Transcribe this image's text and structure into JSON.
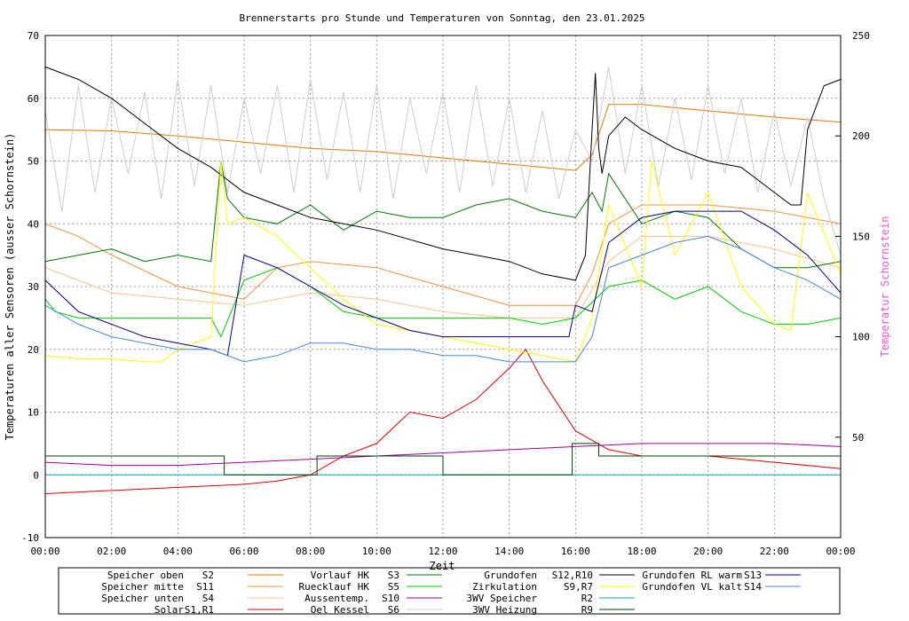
{
  "chart_data": {
    "type": "line",
    "title": "Brennerstarts pro Stunde und Temperaturen von Sonntag, den 23.01.2025",
    "xlabel": "Zeit",
    "ylabel": "Temperaturen aller Sensoren (ausser Schornstein)",
    "y2label": "Temperatur Schornstein",
    "xlim": [
      0,
      24
    ],
    "ylim": [
      -10,
      70
    ],
    "y2lim": [
      0,
      250
    ],
    "grid": true,
    "x_ticks": [
      "00:00",
      "02:00",
      "04:00",
      "06:00",
      "08:00",
      "10:00",
      "12:00",
      "14:00",
      "16:00",
      "18:00",
      "20:00",
      "22:00",
      "00:00"
    ],
    "y_ticks": [
      "-10",
      "0",
      "10",
      "20",
      "30",
      "40",
      "50",
      "60",
      "70"
    ],
    "y2_ticks": [
      "50",
      "100",
      "150",
      "200",
      "250"
    ],
    "legend_position": "bottom",
    "series": [
      {
        "name": "Speicher oben",
        "sensor": "S2",
        "color": "#e07800",
        "x": [
          0,
          2,
          4,
          6,
          8,
          10,
          12,
          14,
          16,
          16.5,
          17,
          18,
          20,
          22,
          24
        ],
        "y": [
          55,
          54.8,
          54,
          53,
          52,
          51.5,
          50.5,
          49.5,
          48.5,
          51,
          59,
          59,
          58,
          57,
          56.2
        ]
      },
      {
        "name": "Speicher mitte",
        "sensor": "S11",
        "color": "#f09040",
        "x": [
          0,
          1,
          2,
          4,
          6,
          7,
          8,
          10,
          12,
          14,
          16,
          16.5,
          17,
          18,
          20,
          22,
          24
        ],
        "y": [
          40,
          38,
          35,
          30,
          28,
          33,
          34,
          33,
          30,
          27,
          27,
          32,
          40,
          43,
          43,
          42,
          40
        ]
      },
      {
        "name": "Speicher unten",
        "sensor": "S4",
        "color": "#ffc090",
        "x": [
          0,
          1,
          2,
          4,
          6,
          8,
          10,
          12,
          14,
          16,
          17,
          18,
          20,
          22,
          24
        ],
        "y": [
          33,
          31,
          29,
          28,
          27,
          29,
          28,
          26,
          25,
          25,
          34,
          38,
          38,
          36,
          33
        ]
      },
      {
        "name": "Solar",
        "sensor": "S1,R1",
        "color": "#dd0000",
        "x": [
          0,
          2,
          4,
          6,
          7,
          8,
          9,
          10,
          11,
          12,
          13,
          14,
          14.5,
          15,
          16,
          17,
          18,
          20,
          22,
          24
        ],
        "y": [
          -3,
          -2.5,
          -2,
          -1.5,
          -1,
          0,
          3,
          5,
          10,
          9,
          12,
          17,
          20,
          15,
          7,
          4,
          3,
          3,
          2,
          1
        ]
      },
      {
        "name": "Vorlauf HK",
        "sensor": "S3",
        "color": "#007700",
        "x": [
          0,
          1,
          2,
          3,
          4,
          5,
          5.3,
          5.5,
          6,
          7,
          8,
          9,
          10,
          11,
          12,
          13,
          14,
          15,
          16,
          16.5,
          16.8,
          17,
          18,
          19,
          20,
          21,
          22,
          23,
          24
        ],
        "y": [
          34,
          35,
          36,
          34,
          35,
          34,
          50,
          44,
          41,
          40,
          43,
          39,
          42,
          41,
          41,
          43,
          44,
          42,
          41,
          45,
          42,
          48,
          40,
          42,
          41,
          36,
          33,
          33,
          34
        ]
      },
      {
        "name": "Ruecklauf HK",
        "sensor": "S5",
        "color": "#00cc00",
        "x": [
          0,
          0.3,
          1,
          2,
          3,
          4,
          5,
          5.3,
          6,
          7,
          8,
          9,
          10,
          11,
          12,
          13,
          14,
          15,
          16,
          17,
          18,
          19,
          20,
          21,
          22,
          23,
          24
        ],
        "y": [
          28,
          26,
          25,
          25,
          25,
          25,
          25,
          22,
          31,
          33,
          30,
          26,
          25,
          25,
          25,
          25,
          25,
          24,
          25,
          30,
          31,
          28,
          30,
          26,
          24,
          24,
          25
        ]
      },
      {
        "name": "Aussentemp.",
        "sensor": "S10",
        "color": "#990099",
        "x": [
          0,
          2,
          4,
          6,
          8,
          10,
          12,
          14,
          16,
          18,
          20,
          22,
          24
        ],
        "y": [
          2,
          1.5,
          1.5,
          2,
          2.5,
          3,
          3.5,
          4,
          4.5,
          5,
          5,
          5,
          4.5
        ]
      },
      {
        "name": "Oel Kessel",
        "sensor": "S6",
        "color": "#cccccc",
        "x": [
          0,
          0.5,
          1,
          1.5,
          2,
          2.5,
          3,
          3.5,
          4,
          4.5,
          5,
          5.5,
          6,
          6.5,
          7,
          7.5,
          8,
          8.5,
          9,
          9.5,
          10,
          10.5,
          11,
          11.5,
          12,
          12.5,
          13,
          13.5,
          14,
          14.5,
          15,
          15.5,
          16,
          16.5,
          17,
          17.5,
          18,
          18.5,
          19,
          19.5,
          20,
          20.5,
          21,
          21.5,
          22,
          22.5,
          23,
          23.5,
          24
        ],
        "y": [
          58,
          42,
          62,
          45,
          60,
          48,
          61,
          44,
          63,
          46,
          62,
          45,
          60,
          48,
          62,
          45,
          63,
          47,
          61,
          45,
          62,
          44,
          60,
          48,
          61,
          45,
          62,
          46,
          60,
          45,
          58,
          44,
          55,
          50,
          65,
          48,
          62,
          46,
          60,
          47,
          62,
          48,
          60,
          45,
          58,
          46,
          57,
          44,
          35
        ]
      },
      {
        "name": "Grundofen",
        "sensor": "S12,R10",
        "color": "#000000",
        "x": [
          0,
          1,
          2,
          3,
          4,
          5,
          6,
          7,
          8,
          10,
          12,
          14,
          15,
          16,
          16.3,
          16.5,
          16.6,
          16.7,
          16.8,
          17,
          17.5,
          18,
          19,
          20,
          21,
          22,
          22.5,
          22.8,
          23,
          23.5,
          24
        ],
        "y": [
          65,
          63,
          60,
          56,
          52,
          49,
          45,
          43,
          41,
          39,
          36,
          34,
          32,
          31,
          35,
          55,
          64,
          52,
          48,
          54,
          57,
          55,
          52,
          50,
          49,
          45,
          43,
          43,
          55,
          62,
          63
        ]
      },
      {
        "name": "Zirkulation",
        "sensor": "S9,R7",
        "color": "#ffff00",
        "x": [
          0,
          1,
          2,
          3,
          3.5,
          4,
          5,
          5.3,
          5.5,
          6,
          7,
          8,
          9,
          10,
          12,
          14,
          15,
          16,
          16.5,
          17,
          18,
          18.3,
          19,
          20,
          21,
          22,
          22.5,
          23,
          24
        ],
        "y": [
          19,
          18.5,
          18.5,
          18,
          18,
          20,
          22,
          50,
          40,
          41,
          38,
          33,
          28,
          24,
          22,
          20,
          19,
          18,
          25,
          43,
          30,
          50,
          35,
          45,
          30,
          24,
          23,
          45,
          32
        ]
      },
      {
        "name": "3WV Speicher",
        "sensor": "R2",
        "color": "#00aaaa",
        "x": [
          0,
          24
        ],
        "y": [
          0,
          0
        ]
      },
      {
        "name": "3WV Heizung",
        "sensor": "R9",
        "color": "#004400",
        "x": [
          0,
          5.4,
          5.4,
          8.2,
          8.2,
          12,
          12,
          15.9,
          15.9,
          16.7,
          16.7,
          24
        ],
        "y": [
          3,
          3,
          0,
          0,
          3,
          3,
          0,
          0,
          5,
          5,
          3,
          3
        ]
      },
      {
        "name": "Grundofen RL warm",
        "sensor": "S13",
        "color": "#000088",
        "x": [
          0,
          1,
          2,
          3,
          4,
          5,
          5.5,
          6,
          7,
          8,
          9,
          10,
          11,
          12,
          13,
          14,
          15,
          15.8,
          16,
          16.5,
          17,
          18,
          19,
          20,
          21,
          22,
          23,
          24
        ],
        "y": [
          31,
          26,
          24,
          22,
          21,
          20,
          19,
          35,
          33,
          30,
          27,
          25,
          23,
          22,
          22,
          22,
          22,
          22,
          27,
          26,
          37,
          41,
          42,
          42,
          42,
          39,
          35,
          29
        ]
      },
      {
        "name": "Grundofen VL kalt",
        "sensor": "S14",
        "color": "#4488dd",
        "x": [
          0,
          1,
          2,
          3,
          4,
          5,
          6,
          7,
          8,
          9,
          10,
          11,
          12,
          13,
          14,
          15,
          16,
          16.5,
          17,
          18,
          19,
          20,
          21,
          22,
          23,
          24
        ],
        "y": [
          27,
          24,
          22,
          21,
          20,
          20,
          18,
          19,
          21,
          21,
          20,
          20,
          19,
          19,
          18,
          18,
          18,
          22,
          33,
          35,
          37,
          38,
          36,
          33,
          31,
          28
        ]
      }
    ]
  }
}
